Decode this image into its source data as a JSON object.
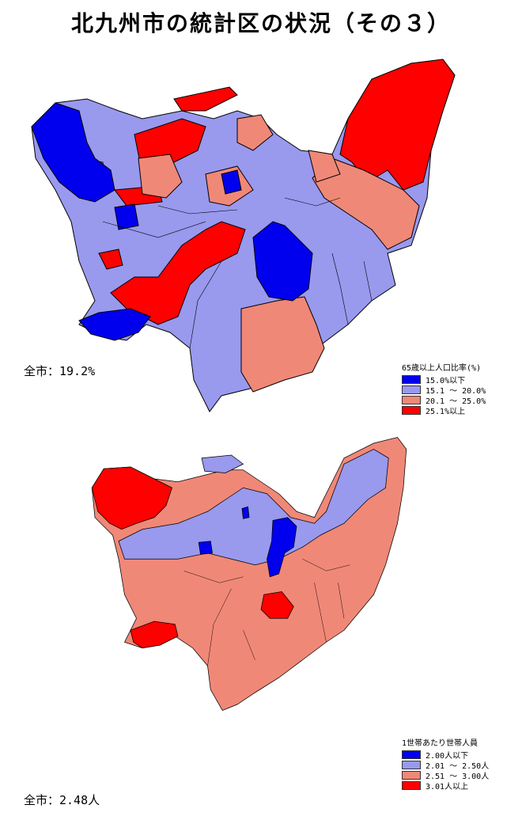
{
  "title": "北九州市の統計区の状況（その３）",
  "colors": {
    "c1": "#0000ee",
    "c2": "#9999ee",
    "c3": "#f08877",
    "c4": "#ff0000"
  },
  "map_top": {
    "total": "全市：19.2%",
    "legend_title": "65歳以上人口比率(%)",
    "legend": [
      {
        "label": "15.0%以下",
        "color": "#0000ee"
      },
      {
        "label": "15.1 ～ 20.0%",
        "color": "#9999ee"
      },
      {
        "label": "20.1 ～ 25.0%",
        "color": "#f08877"
      },
      {
        "label": "25.1%以上",
        "color": "#ff0000"
      }
    ]
  },
  "map_bottom": {
    "total": "全市：2.48人",
    "legend_title": "1世帯あたり世帯人員",
    "legend": [
      {
        "label": "2.00人以下",
        "color": "#0000ee"
      },
      {
        "label": "2.01 ～ 2.50人",
        "color": "#9999ee"
      },
      {
        "label": "2.51 ～ 3.00人",
        "color": "#f08877"
      },
      {
        "label": "3.01人以上",
        "color": "#ff0000"
      }
    ]
  }
}
